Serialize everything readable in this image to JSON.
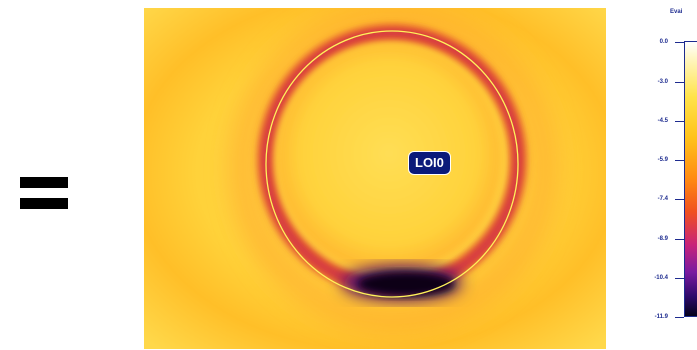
{
  "loi_label": "LOI0",
  "colorbar": {
    "title": "Evai",
    "ticks": [
      "0.0",
      "-3.0",
      "-4.5",
      "-5.9",
      "-7.4",
      "-8.9",
      "-10.4",
      "-11.9"
    ]
  },
  "colors": {
    "background_hot": "#ffd43b",
    "ring_cool": "#e03a2e",
    "ring_coldest": "#0a0014",
    "circle_stroke": "#fff35a",
    "label_bg": "#0b1a7a",
    "scale_text": "#1d2b8f"
  }
}
